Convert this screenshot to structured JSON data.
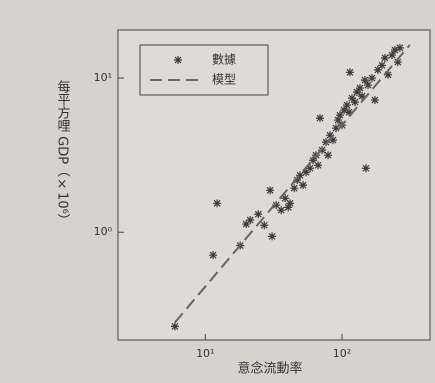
{
  "chart_data": {
    "type": "scatter",
    "x_label": "意念流動率",
    "y_label": "每平方哩 GDP（×10⁶）",
    "xscale": "log",
    "yscale": "log",
    "xlim": [
      2.3,
      440
    ],
    "ylim": [
      0.2,
      20.5
    ],
    "xticks": [
      {
        "value": 10,
        "label": "10¹"
      },
      {
        "value": 100,
        "label": "10²"
      }
    ],
    "yticks": [
      {
        "value": 1,
        "label": "10⁰"
      },
      {
        "value": 10,
        "label": "10¹"
      }
    ],
    "legend": "upper left",
    "series": [
      {
        "name": "數據",
        "color": "#3a3a3a",
        "marker": "asterisk",
        "x": [
          6.0,
          11.4,
          12.2,
          18.0,
          19.9,
          21.3,
          24.4,
          27.0,
          29.8,
          30.8,
          33.0,
          35.9,
          38.4,
          40.4,
          41.7,
          44.7,
          47.0,
          49.3,
          51.9,
          54.6,
          58.4,
          61.4,
          64.6,
          66.8,
          69.0,
          71.5,
          76.4,
          79.1,
          81.7,
          85.9,
          90.4,
          93.5,
          96.6,
          100,
          103.5,
          108.7,
          112.5,
          114.3,
          118.3,
          124.5,
          128.5,
          135.2,
          140,
          147,
          149.6,
          155,
          165.6,
          174,
          183,
          196,
          206,
          217,
          232,
          244,
          256,
          265
        ],
        "values": [
          0.245,
          0.71,
          1.54,
          0.82,
          1.13,
          1.2,
          1.31,
          1.11,
          1.87,
          0.94,
          1.5,
          1.39,
          1.66,
          1.45,
          1.54,
          1.93,
          2.18,
          2.34,
          2.02,
          2.45,
          2.6,
          2.93,
          3.16,
          2.72,
          5.5,
          3.41,
          3.84,
          3.16,
          4.26,
          3.96,
          4.73,
          5.34,
          5.75,
          4.95,
          6.2,
          6.68,
          6.01,
          10.9,
          7.41,
          6.98,
          8.11,
          8.61,
          7.64,
          9.7,
          2.6,
          9.01,
          10.0,
          7.2,
          11.3,
          12.1,
          13.5,
          10.5,
          14.1,
          15.2,
          12.7,
          15.7
        ]
      },
      {
        "name": "模型",
        "color": "#666666",
        "marker": "dashed-line",
        "x": [
          6.0,
          313
        ],
        "values": [
          0.26,
          16.4
        ]
      }
    ]
  }
}
